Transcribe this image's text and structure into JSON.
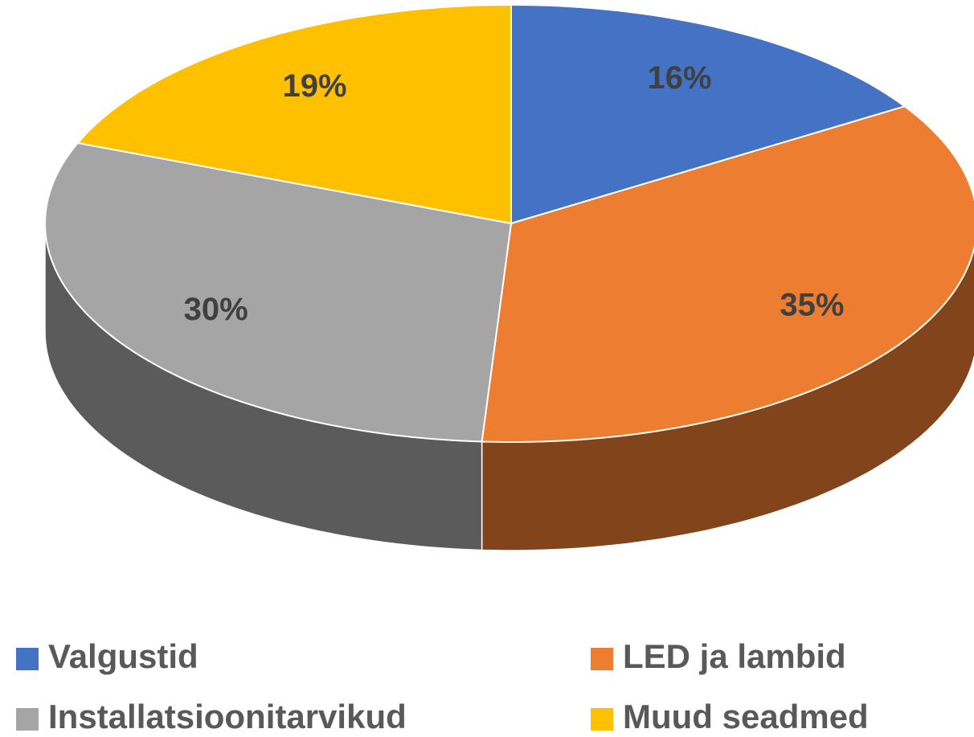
{
  "chart_data": {
    "type": "pie",
    "categories": [
      "Valgustid",
      "LED ja lambid",
      "Installatsioonitarvikud",
      "Muud seadmed"
    ],
    "values": [
      16,
      35,
      30,
      19
    ],
    "value_labels": [
      "16%",
      "35%",
      "30%",
      "19%"
    ],
    "colors": [
      "#4472c4",
      "#ed7d31",
      "#a5a5a5",
      "#ffc000"
    ],
    "legend": "bottom"
  }
}
